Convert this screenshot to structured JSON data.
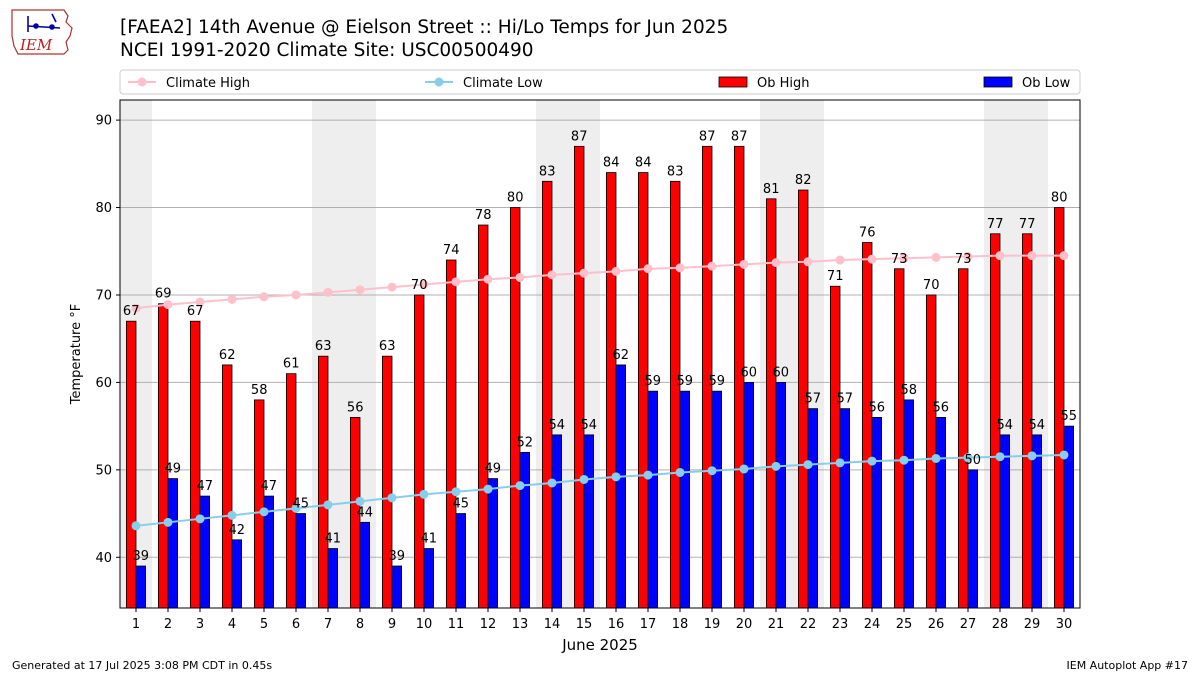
{
  "header": {
    "title_line1": "[FAEA2] 14th Avenue @ Eielson Street :: Hi/Lo Temps for Jun 2025",
    "title_line2": "NCEI 1991-2020 Climate Site: USC00500490",
    "logo_text": "IEM"
  },
  "footer": {
    "generated": "Generated at 17 Jul 2025 3:08 PM CDT in 0.45s",
    "app": "IEM Autoplot App #17"
  },
  "colors": {
    "ob_high": "#ff0000",
    "ob_low": "#0000ff",
    "climate_high": "#ffc0cb",
    "climate_low": "#87ceeb",
    "weekend_band": "#eeeeee",
    "grid": "#b0b0b0"
  },
  "chart_data": {
    "type": "bar",
    "title": "[FAEA2] 14th Avenue @ Eielson Street :: Hi/Lo Temps for Jun 2025",
    "xlabel": "June 2025",
    "ylabel": "Temperature °F",
    "ylim": [
      34.2,
      92.3
    ],
    "yticks": [
      40,
      50,
      60,
      70,
      80,
      90
    ],
    "grid": true,
    "legend_position": "top",
    "categories": [
      "1",
      "2",
      "3",
      "4",
      "5",
      "6",
      "7",
      "8",
      "9",
      "10",
      "11",
      "12",
      "13",
      "14",
      "15",
      "16",
      "17",
      "18",
      "19",
      "20",
      "21",
      "22",
      "23",
      "24",
      "25",
      "26",
      "27",
      "28",
      "29",
      "30"
    ],
    "shaded_days": [
      1,
      7,
      8,
      14,
      15,
      21,
      22,
      28,
      29
    ],
    "series": [
      {
        "name": "Ob High",
        "kind": "bar",
        "values": [
          67,
          69,
          67,
          62,
          58,
          61,
          63,
          56,
          63,
          70,
          74,
          78,
          80,
          83,
          87,
          84,
          84,
          83,
          87,
          87,
          81,
          82,
          71,
          76,
          73,
          70,
          73,
          77,
          77,
          80
        ],
        "labels": [
          "67",
          "69",
          "67",
          "62",
          "58",
          "61",
          "63",
          "56",
          "63",
          "70",
          "74",
          "78",
          "80",
          "83",
          "87",
          "84",
          "84",
          "83",
          "87",
          "87",
          "81",
          "82",
          "71",
          "76",
          "73",
          "70",
          "73",
          "77",
          "77",
          "80"
        ]
      },
      {
        "name": "Ob Low",
        "kind": "bar",
        "values": [
          39,
          49,
          47,
          42,
          47,
          45,
          41,
          44,
          39,
          41,
          45,
          49,
          52,
          54,
          54,
          62,
          59,
          59,
          59,
          60,
          60,
          57,
          57,
          56,
          58,
          56,
          50,
          54,
          54,
          55
        ],
        "labels": [
          "39",
          "49",
          "47",
          "42",
          "47",
          "45",
          "41",
          "44",
          "39",
          "41",
          "45",
          "49",
          "52",
          "54",
          "54",
          "62",
          "59",
          "59",
          "59",
          "60",
          "60",
          "57",
          "57",
          "56",
          "58",
          "56",
          "50",
          "54",
          "54",
          "55"
        ]
      },
      {
        "name": "Climate High",
        "kind": "line",
        "values": [
          68.5,
          68.9,
          69.2,
          69.5,
          69.8,
          70.0,
          70.3,
          70.6,
          70.9,
          71.2,
          71.5,
          71.8,
          72.0,
          72.3,
          72.5,
          72.7,
          73.0,
          73.1,
          73.3,
          73.5,
          73.7,
          73.8,
          74.0,
          74.1,
          74.2,
          74.3,
          74.4,
          74.5,
          74.5,
          74.5
        ]
      },
      {
        "name": "Climate Low",
        "kind": "line",
        "values": [
          43.6,
          44.0,
          44.4,
          44.8,
          45.2,
          45.6,
          46.0,
          46.4,
          46.8,
          47.2,
          47.5,
          47.8,
          48.2,
          48.5,
          48.9,
          49.2,
          49.4,
          49.7,
          49.9,
          50.1,
          50.4,
          50.6,
          50.8,
          51.0,
          51.1,
          51.3,
          51.4,
          51.5,
          51.6,
          51.7
        ]
      }
    ]
  }
}
